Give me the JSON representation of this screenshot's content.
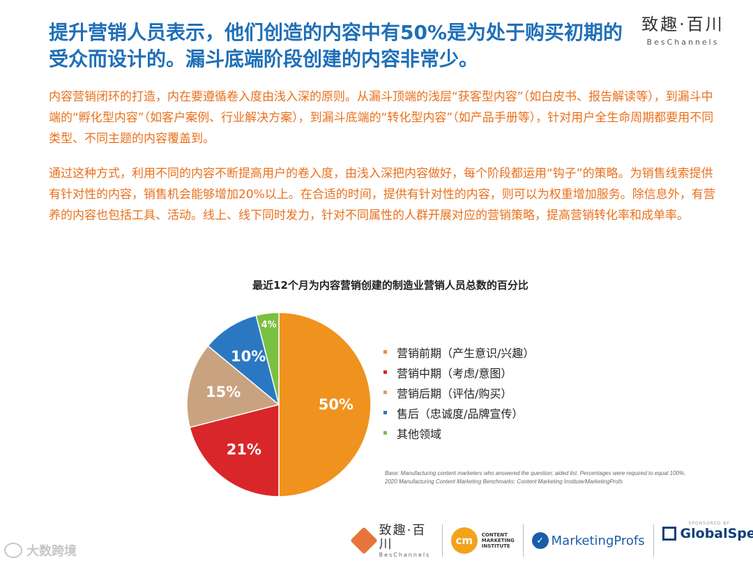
{
  "headline": "提升营销人员表示，他们创造的内容中有50%是为处于购买初期的受众而设计的。漏斗底端阶段创建的内容非常少。",
  "brand": {
    "name_cn": "致趣·百川",
    "name_en": "BesChannels"
  },
  "paragraphs": [
    "内容营销闭环的打造，内在要遵循卷入度由浅入深的原则。从漏斗顶端的浅层“获客型内容”（如白皮书、报告解读等），到漏斗中端的“孵化型内容”（如客户案例、行业解决方案），到漏斗底端的“转化型内容”（如产品手册等），针对用户全生命周期都要用不同类型、不同主题的内容覆盖到。",
    "通过这种方式，利用不同的内容不断提高用户的卷入度，由浅入深把内容做好，每个阶段都运用“钩子”的策略。为销售线索提供有针对性的内容，销售机会能够增加20%以上。在合适的时间，提供有针对性的内容，则可以为权重增加服务。除信息外，有营养的内容也包括工具、活动。线上、线下同时发力，针对不同属性的人群开展对应的营销策略，提高营销转化率和成单率。"
  ],
  "chart_data": {
    "type": "pie",
    "title": "最近12个月为内容营销创建的制造业营销人员总数的百分比",
    "categories": [
      "营销前期（产生意识/兴趣）",
      "营销中期（考虑/意图）",
      "营销后期（评估/购买）",
      "售后（忠诚度/品牌宣传）",
      "其他领域"
    ],
    "values": [
      50,
      21,
      15,
      10,
      4
    ],
    "labels": [
      "50%",
      "21%",
      "15%",
      "10%",
      "4%"
    ],
    "colors": [
      "#f0921e",
      "#d9262b",
      "#c9a37f",
      "#2b78c2",
      "#79c043"
    ],
    "legend_position": "right",
    "start": "top, clockwise"
  },
  "source_note": {
    "line1": "Base: Manufacturing content marketers who answered the question; aided list. Percentages were required to equal 100%.",
    "line2": "2020 Manufacturing Content Marketing Benchmarks: Content Marketing Institute/MarketingProfs"
  },
  "footer": {
    "beschannels_cn": "致趣·百川",
    "beschannels_en": "BesChannels",
    "cmi_mark": "cm",
    "cmi_lines": [
      "CONTENT",
      "MARKETING",
      "INSTITUTE"
    ],
    "marketingprofs": "MarketingProfs",
    "sponsored_by": "SPONSORED BY",
    "globalspec": "GlobalSpec"
  },
  "watermark": "大数跨境"
}
